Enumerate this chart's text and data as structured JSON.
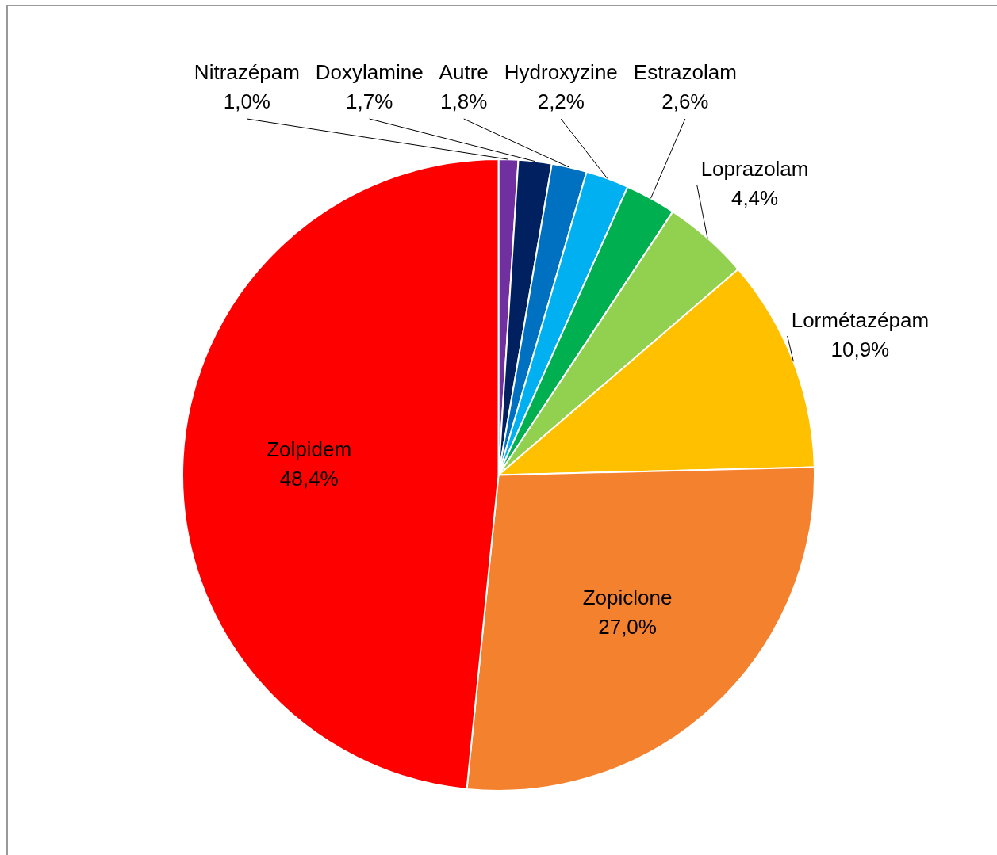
{
  "chart_data": {
    "type": "pie",
    "categories": [
      "Nitrazépam",
      "Doxylamine",
      "Autre",
      "Hydroxyzine",
      "Estrazolam",
      "Loprazolam",
      "Lormétazépam",
      "Zopiclone",
      "Zolpidem"
    ],
    "values": [
      1.0,
      1.7,
      1.8,
      2.2,
      2.6,
      4.4,
      10.9,
      27.0,
      48.4
    ],
    "value_labels": [
      "1,0%",
      "1,7%",
      "1,8%",
      "2,2%",
      "2,6%",
      "4,4%",
      "10,9%",
      "27,0%",
      "48,4%"
    ],
    "colors": [
      "#7030a0",
      "#002060",
      "#0070c0",
      "#00b0f0",
      "#00b050",
      "#92d050",
      "#ffc000",
      "#f4812e",
      "#ff0000"
    ],
    "legend": false
  }
}
